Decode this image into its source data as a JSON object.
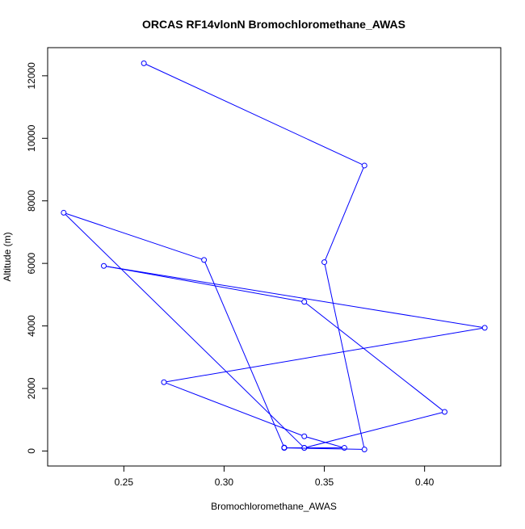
{
  "chart_data": {
    "type": "line",
    "title": "ORCAS RF14vlonN Bromochloromethane_AWAS",
    "xlabel": "Bromochloromethane_AWAS",
    "ylabel": "Altitude (m)",
    "xlim": [
      0.212,
      0.438
    ],
    "ylim": [
      -480,
      12900
    ],
    "x_ticks": [
      0.25,
      0.3,
      0.35,
      0.4
    ],
    "x_tick_labels": [
      "0.25",
      "0.30",
      "0.35",
      "0.40"
    ],
    "y_ticks": [
      0,
      2000,
      4000,
      6000,
      8000,
      10000,
      12000
    ],
    "y_tick_labels": [
      "0",
      "2000",
      "4000",
      "6000",
      "8000",
      "10000",
      "12000"
    ],
    "grid": false,
    "legend": "none",
    "series": [
      {
        "color": "#0000ff",
        "marker": "open-circle",
        "x": [
          0.26,
          0.37,
          0.35,
          0.37,
          0.33,
          0.33,
          0.34,
          0.36,
          0.34,
          0.27,
          0.43,
          0.24,
          0.34,
          0.41,
          0.34,
          0.22,
          0.29,
          0.33
        ],
        "y": [
          12400,
          9130,
          6040,
          50,
          100,
          100,
          100,
          100,
          470,
          2200,
          3940,
          5920,
          4770,
          1250,
          100,
          7620,
          6110,
          110
        ]
      }
    ]
  }
}
